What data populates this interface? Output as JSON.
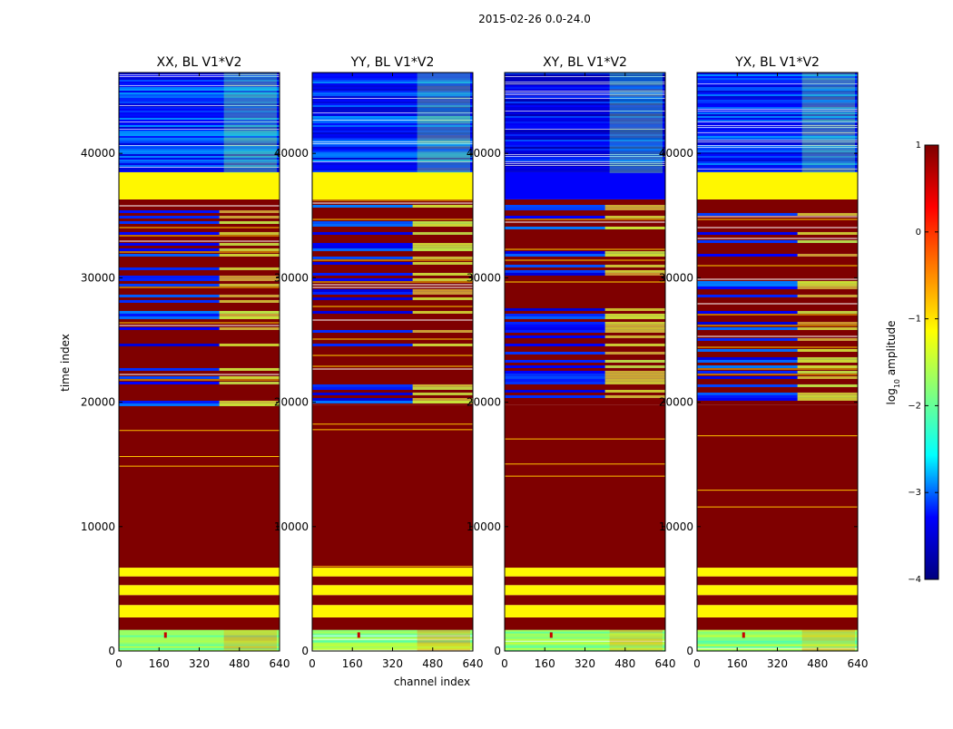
{
  "figure": {
    "suptitle": "2015-02-26 0.0-24.0",
    "xlabel": "channel index",
    "ylabel": "time index"
  },
  "chart_data": [
    {
      "type": "heatmap",
      "title": "XX, BL V1*V2",
      "xlim": [
        0,
        640
      ],
      "ylim": [
        0,
        46500
      ],
      "xticks": [
        0,
        160,
        320,
        480,
        640
      ],
      "yticks": [
        0,
        10000,
        20000,
        30000,
        40000
      ],
      "rfi_band_channels": [
        400,
        640
      ],
      "segments": [
        {
          "from": 0,
          "to": 1700,
          "level": -1.8,
          "texture": "noisy"
        },
        {
          "from": 1700,
          "to": 2700,
          "level": 1.0
        },
        {
          "from": 2700,
          "to": 3700,
          "level": -1.1
        },
        {
          "from": 3700,
          "to": 4500,
          "level": 1.0
        },
        {
          "from": 4500,
          "to": 5300,
          "level": -1.1
        },
        {
          "from": 5300,
          "to": 6000,
          "level": 1.0
        },
        {
          "from": 6000,
          "to": 6700,
          "level": -1.1
        },
        {
          "from": 6700,
          "to": 19800,
          "level": 1.0
        },
        {
          "from": 19800,
          "to": 36300,
          "level": 1.0,
          "texture": "mixed"
        },
        {
          "from": 36300,
          "to": 38500,
          "level": -1.1
        },
        {
          "from": 38500,
          "to": 46500,
          "level": -3.2,
          "texture": "noisy"
        }
      ]
    },
    {
      "type": "heatmap",
      "title": "YY, BL V1*V2",
      "xlim": [
        0,
        640
      ],
      "ylim": [
        0,
        46500
      ],
      "xticks": [
        0,
        160,
        320,
        480,
        640
      ],
      "yticks": [
        0,
        10000,
        20000,
        30000,
        40000
      ],
      "rfi_band_channels": [
        400,
        640
      ],
      "segments": [
        {
          "from": 0,
          "to": 1700,
          "level": -1.8,
          "texture": "noisy"
        },
        {
          "from": 1700,
          "to": 2700,
          "level": 1.0
        },
        {
          "from": 2700,
          "to": 3700,
          "level": -1.1
        },
        {
          "from": 3700,
          "to": 4500,
          "level": 1.0
        },
        {
          "from": 4500,
          "to": 5300,
          "level": -1.1
        },
        {
          "from": 5300,
          "to": 6000,
          "level": 1.0
        },
        {
          "from": 6000,
          "to": 6700,
          "level": -1.1
        },
        {
          "from": 6700,
          "to": 19800,
          "level": 1.0
        },
        {
          "from": 19800,
          "to": 36300,
          "level": 1.0,
          "texture": "mixed"
        },
        {
          "from": 36300,
          "to": 38500,
          "level": -1.1
        },
        {
          "from": 38500,
          "to": 46500,
          "level": -3.2,
          "texture": "noisy"
        }
      ]
    },
    {
      "type": "heatmap",
      "title": "XY, BL V1*V2",
      "xlim": [
        0,
        640
      ],
      "ylim": [
        0,
        46500
      ],
      "xticks": [
        0,
        160,
        320,
        480,
        640
      ],
      "yticks": [
        0,
        10000,
        20000,
        30000,
        40000
      ],
      "rfi_band_channels": [
        400,
        640
      ],
      "segments": [
        {
          "from": 0,
          "to": 1700,
          "level": -1.8,
          "texture": "noisy"
        },
        {
          "from": 1700,
          "to": 2700,
          "level": 1.0
        },
        {
          "from": 2700,
          "to": 3700,
          "level": -1.1
        },
        {
          "from": 3700,
          "to": 4500,
          "level": 1.0
        },
        {
          "from": 4500,
          "to": 5300,
          "level": -1.1
        },
        {
          "from": 5300,
          "to": 6000,
          "level": 1.0
        },
        {
          "from": 6000,
          "to": 6700,
          "level": -1.1
        },
        {
          "from": 6700,
          "to": 19800,
          "level": 1.0
        },
        {
          "from": 19800,
          "to": 36300,
          "level": 1.0,
          "texture": "mixed"
        },
        {
          "from": 36300,
          "to": 38500,
          "level": -3.3
        },
        {
          "from": 38500,
          "to": 46500,
          "level": -3.4,
          "texture": "noisy"
        }
      ]
    },
    {
      "type": "heatmap",
      "title": "YX, BL V1*V2",
      "xlim": [
        0,
        640
      ],
      "ylim": [
        0,
        46500
      ],
      "xticks": [
        0,
        160,
        320,
        480,
        640
      ],
      "yticks": [
        0,
        10000,
        20000,
        30000,
        40000
      ],
      "rfi_band_channels": [
        400,
        640
      ],
      "segments": [
        {
          "from": 0,
          "to": 1700,
          "level": -1.8,
          "texture": "noisy"
        },
        {
          "from": 1700,
          "to": 2700,
          "level": 1.0
        },
        {
          "from": 2700,
          "to": 3700,
          "level": -1.1
        },
        {
          "from": 3700,
          "to": 4500,
          "level": 1.0
        },
        {
          "from": 4500,
          "to": 5300,
          "level": -1.1
        },
        {
          "from": 5300,
          "to": 6000,
          "level": 1.0
        },
        {
          "from": 6000,
          "to": 6700,
          "level": -1.1
        },
        {
          "from": 6700,
          "to": 19800,
          "level": 1.0
        },
        {
          "from": 19800,
          "to": 36300,
          "level": 1.0,
          "texture": "mixed"
        },
        {
          "from": 36300,
          "to": 38500,
          "level": -1.1
        },
        {
          "from": 38500,
          "to": 46500,
          "level": -3.2,
          "texture": "noisy"
        }
      ]
    }
  ],
  "colorbar": {
    "label_prefix": "log",
    "label_sub": "10",
    "label_suffix": " amplitude",
    "range": [
      -4,
      1
    ],
    "ticks": [
      "1",
      "0",
      "−1",
      "−2",
      "−3",
      "−4"
    ],
    "colormap": [
      "#00007f",
      "#0000ff",
      "#00ffff",
      "#7fff7f",
      "#ffff00",
      "#ff7f00",
      "#ff0000",
      "#7f0000"
    ]
  }
}
